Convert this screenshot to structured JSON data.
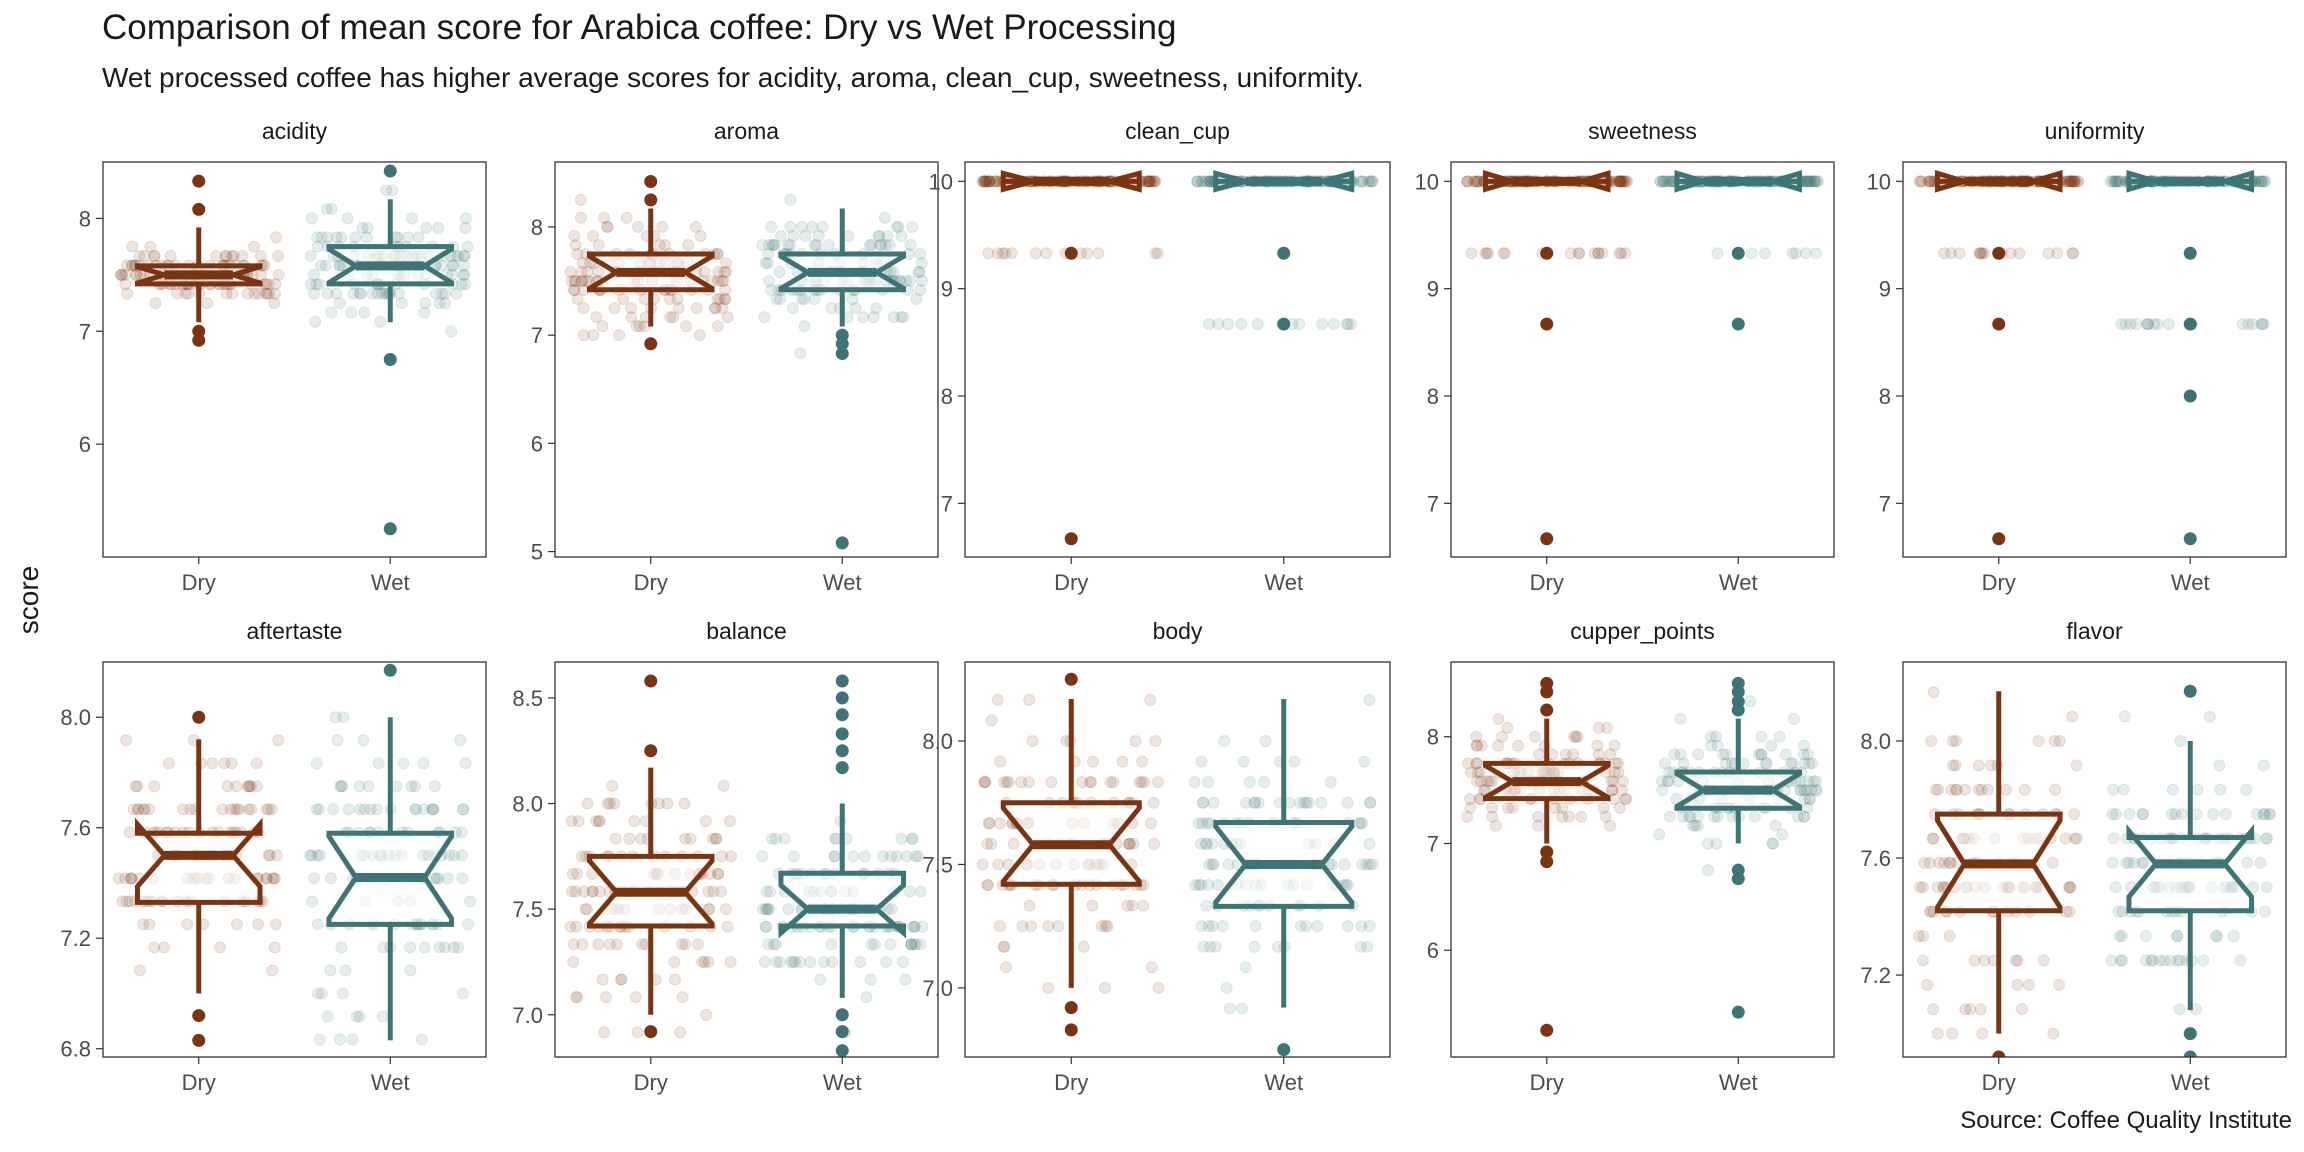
{
  "title": "Comparison of mean score for Arabica coffee: Dry vs Wet Processing",
  "subtitle": "Wet processed coffee has higher average scores for acidity, aroma, clean_cup, sweetness, uniformity.",
  "caption": "Source: Coffee Quality Institute",
  "colors": {
    "dry": "#7B3411",
    "wet": "#3E7476"
  },
  "chart_data": {
    "type": "boxplot",
    "notched": true,
    "ylabel": "score",
    "categories": [
      "Dry",
      "Wet"
    ],
    "panels": [
      {
        "name": "acidity",
        "yticks": [
          6,
          7,
          8
        ],
        "ylim": [
          5.0,
          8.5
        ],
        "groups": [
          {
            "category": "Dry",
            "q1": 7.42,
            "median": 7.5,
            "q3": 7.58,
            "whisker_low": 7.08,
            "whisker_high": 7.92,
            "outliers": [
              8.33,
              8.08,
              7.0,
              6.92
            ],
            "jitter": [
              7.0,
              8.25
            ]
          },
          {
            "category": "Wet",
            "q1": 7.42,
            "median": 7.58,
            "q3": 7.75,
            "whisker_low": 7.08,
            "whisker_high": 8.17,
            "outliers": [
              8.42,
              6.75,
              5.25
            ],
            "jitter": [
              6.75,
              8.25
            ]
          }
        ]
      },
      {
        "name": "aroma",
        "yticks": [
          5,
          6,
          7,
          8
        ],
        "ylim": [
          4.95,
          8.6
        ],
        "groups": [
          {
            "category": "Dry",
            "q1": 7.42,
            "median": 7.58,
            "q3": 7.75,
            "whisker_low": 7.08,
            "whisker_high": 8.17,
            "outliers": [
              8.42,
              8.25,
              6.92
            ],
            "jitter": [
              7.0,
              8.25
            ]
          },
          {
            "category": "Wet",
            "q1": 7.42,
            "median": 7.58,
            "q3": 7.75,
            "whisker_low": 7.08,
            "whisker_high": 8.17,
            "outliers": [
              7.0,
              6.92,
              6.83,
              5.08
            ],
            "jitter": [
              6.83,
              8.25
            ]
          }
        ]
      },
      {
        "name": "clean_cup",
        "yticks": [
          7,
          8,
          9,
          10
        ],
        "ylim": [
          6.5,
          10.18
        ],
        "groups": [
          {
            "category": "Dry",
            "q1": 10,
            "median": 10,
            "q3": 10,
            "whisker_low": 10,
            "whisker_high": 10,
            "outliers": [
              9.33,
              6.67
            ],
            "jitter": [
              9.33,
              10
            ]
          },
          {
            "category": "Wet",
            "q1": 10,
            "median": 10,
            "q3": 10,
            "whisker_low": 10,
            "whisker_high": 10,
            "outliers": [
              9.33,
              8.67
            ],
            "jitter": [
              8.67,
              10
            ]
          }
        ]
      },
      {
        "name": "sweetness",
        "yticks": [
          7,
          8,
          9,
          10
        ],
        "ylim": [
          6.5,
          10.18
        ],
        "groups": [
          {
            "category": "Dry",
            "q1": 10,
            "median": 10,
            "q3": 10,
            "whisker_low": 10,
            "whisker_high": 10,
            "outliers": [
              9.33,
              8.67,
              6.67
            ],
            "jitter": [
              9.33,
              10
            ]
          },
          {
            "category": "Wet",
            "q1": 10,
            "median": 10,
            "q3": 10,
            "whisker_low": 10,
            "whisker_high": 10,
            "outliers": [
              9.33,
              8.67
            ],
            "jitter": [
              9.33,
              10
            ]
          }
        ]
      },
      {
        "name": "uniformity",
        "yticks": [
          7,
          8,
          9,
          10
        ],
        "ylim": [
          6.5,
          10.18
        ],
        "groups": [
          {
            "category": "Dry",
            "q1": 10,
            "median": 10,
            "q3": 10,
            "whisker_low": 10,
            "whisker_high": 10,
            "outliers": [
              9.33,
              8.67,
              6.67
            ],
            "jitter": [
              9.33,
              10
            ]
          },
          {
            "category": "Wet",
            "q1": 10,
            "median": 10,
            "q3": 10,
            "whisker_low": 10,
            "whisker_high": 10,
            "outliers": [
              9.33,
              8.67,
              8.0,
              6.67
            ],
            "jitter": [
              8.67,
              10
            ]
          }
        ]
      },
      {
        "name": "aftertaste",
        "yticks": [
          6.8,
          7.2,
          7.6,
          8.0
        ],
        "tick_decimals": 1,
        "ylim": [
          6.77,
          8.2
        ],
        "groups": [
          {
            "category": "Dry",
            "q1": 7.33,
            "median": 7.5,
            "q3": 7.58,
            "whisker_low": 7.0,
            "whisker_high": 7.92,
            "outliers": [
              8.0,
              6.92,
              6.83
            ],
            "jitter": [
              6.92,
              8.0
            ]
          },
          {
            "category": "Wet",
            "q1": 7.25,
            "median": 7.42,
            "q3": 7.58,
            "whisker_low": 6.83,
            "whisker_high": 8.0,
            "outliers": [
              8.17
            ],
            "jitter": [
              6.83,
              8.17
            ]
          }
        ]
      },
      {
        "name": "balance",
        "yticks": [
          7.0,
          7.5,
          8.0,
          8.5
        ],
        "tick_decimals": 1,
        "ylim": [
          6.8,
          8.67
        ],
        "groups": [
          {
            "category": "Dry",
            "q1": 7.42,
            "median": 7.58,
            "q3": 7.75,
            "whisker_low": 7.0,
            "whisker_high": 8.17,
            "outliers": [
              8.58,
              8.25,
              6.92
            ],
            "jitter": [
              6.92,
              8.58
            ]
          },
          {
            "category": "Wet",
            "q1": 7.42,
            "median": 7.5,
            "q3": 7.67,
            "whisker_low": 7.08,
            "whisker_high": 8.0,
            "outliers": [
              8.58,
              8.5,
              8.42,
              8.33,
              8.25,
              8.17,
              7.0,
              6.92,
              6.83
            ],
            "jitter": [
              6.83,
              8.58
            ]
          }
        ]
      },
      {
        "name": "body",
        "yticks": [
          7.0,
          7.5,
          8.0
        ],
        "tick_decimals": 1,
        "ylim": [
          6.72,
          8.32
        ],
        "groups": [
          {
            "category": "Dry",
            "q1": 7.42,
            "median": 7.58,
            "q3": 7.75,
            "whisker_low": 7.0,
            "whisker_high": 8.17,
            "outliers": [
              8.25,
              6.92,
              6.83
            ],
            "jitter": [
              6.92,
              8.17
            ]
          },
          {
            "category": "Wet",
            "q1": 7.33,
            "median": 7.5,
            "q3": 7.67,
            "whisker_low": 6.92,
            "whisker_high": 8.17,
            "outliers": [
              6.75
            ],
            "jitter": [
              6.83,
              8.17
            ]
          }
        ]
      },
      {
        "name": "cupper_points",
        "yticks": [
          6,
          7,
          8
        ],
        "ylim": [
          5.0,
          8.7
        ],
        "groups": [
          {
            "category": "Dry",
            "q1": 7.42,
            "median": 7.58,
            "q3": 7.75,
            "whisker_low": 7.0,
            "whisker_high": 8.17,
            "outliers": [
              8.5,
              8.42,
              8.25,
              6.92,
              6.83,
              5.25
            ],
            "jitter": [
              6.83,
              8.5
            ]
          },
          {
            "category": "Wet",
            "q1": 7.33,
            "median": 7.5,
            "q3": 7.67,
            "whisker_low": 7.0,
            "whisker_high": 8.17,
            "outliers": [
              8.5,
              8.42,
              8.33,
              8.25,
              6.75,
              6.67,
              5.42
            ],
            "jitter": [
              6.75,
              8.5
            ]
          }
        ]
      },
      {
        "name": "flavor",
        "yticks": [
          7.2,
          7.6,
          8.0
        ],
        "tick_decimals": 1,
        "ylim": [
          6.92,
          8.27
        ],
        "groups": [
          {
            "category": "Dry",
            "q1": 7.42,
            "median": 7.58,
            "q3": 7.75,
            "whisker_low": 7.0,
            "whisker_high": 8.17,
            "outliers": [
              6.92
            ],
            "jitter": [
              7.0,
              8.17
            ]
          },
          {
            "category": "Wet",
            "q1": 7.42,
            "median": 7.58,
            "q3": 7.67,
            "whisker_low": 7.08,
            "whisker_high": 8.0,
            "outliers": [
              8.17,
              7.0,
              6.92
            ],
            "jitter": [
              6.92,
              8.17
            ]
          }
        ]
      }
    ]
  }
}
